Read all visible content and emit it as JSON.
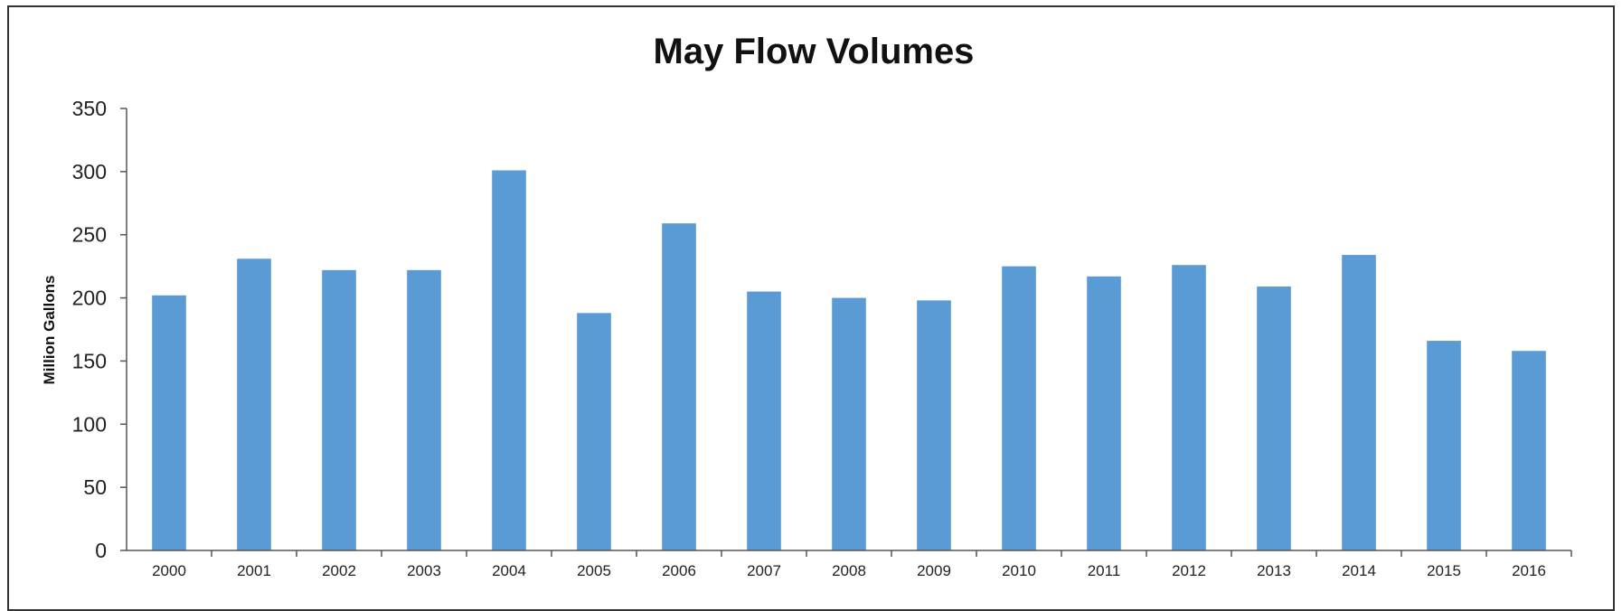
{
  "chart_data": {
    "type": "bar",
    "title": "May Flow Volumes",
    "xlabel": "",
    "ylabel": "Million Gallons",
    "ylim": [
      0,
      350
    ],
    "yticks": [
      "0",
      "50",
      "100",
      "150",
      "200",
      "250",
      "300",
      "350"
    ],
    "categories": [
      "2000",
      "2001",
      "2002",
      "2003",
      "2004",
      "2005",
      "2006",
      "2007",
      "2008",
      "2009",
      "2010",
      "2011",
      "2012",
      "2013",
      "2014",
      "2015",
      "2016"
    ],
    "values": [
      202,
      231,
      222,
      222,
      301,
      188,
      259,
      205,
      200,
      198,
      225,
      217,
      226,
      209,
      234,
      166,
      158
    ],
    "bar_color": "#5b9bd5",
    "grid": false,
    "legend": "none"
  }
}
